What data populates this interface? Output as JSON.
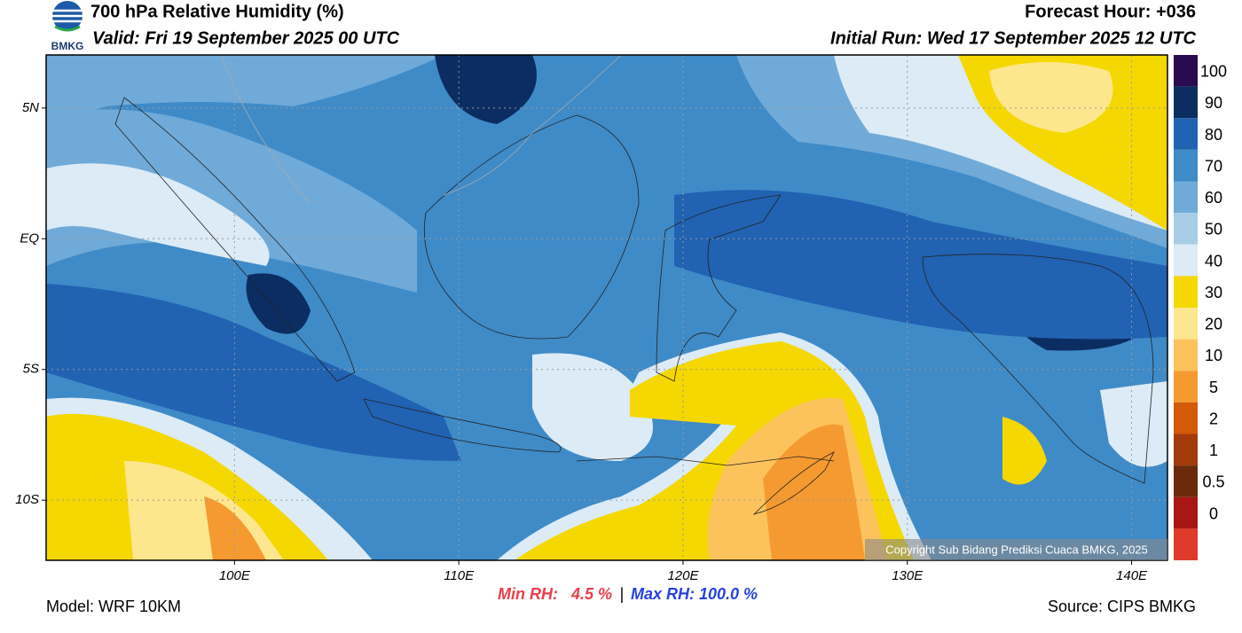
{
  "header": {
    "logo_text": "BMKG",
    "title": "700 hPa Relative Humidity (%)",
    "valid": "Valid: Fri 19 September 2025 00 UTC",
    "forecast_hour": "Forecast Hour: +036",
    "initial_run": "Initial Run: Wed 17 September 2025 12 UTC"
  },
  "map": {
    "lon_range": [
      91.6,
      141.6
    ],
    "lat_range": [
      7.03,
      -12.3
    ],
    "lon_ticks": [
      {
        "value": 100,
        "label": "100E"
      },
      {
        "value": 110,
        "label": "110E"
      },
      {
        "value": 120,
        "label": "120E"
      },
      {
        "value": 130,
        "label": "130E"
      },
      {
        "value": 140,
        "label": "140E"
      }
    ],
    "lat_ticks": [
      {
        "value": 5,
        "label": "5N"
      },
      {
        "value": 0,
        "label": "EQ"
      },
      {
        "value": -5,
        "label": "5S"
      },
      {
        "value": -10,
        "label": "10S"
      }
    ],
    "copyright": "Copyright Sub Bidang Prediksi Cuaca BMKG, 2025"
  },
  "colorbar": {
    "levels": [
      100,
      90,
      80,
      70,
      60,
      50,
      40,
      30,
      20,
      10,
      5,
      2,
      1,
      0.5,
      0
    ],
    "colors": [
      "#2b0b50",
      "#0b2d62",
      "#2162b2",
      "#3f8bc8",
      "#70aad8",
      "#a8cde6",
      "#dcebf5",
      "#f5d800",
      "#fde78e",
      "#fcc35c",
      "#f59a30",
      "#d3590b",
      "#a23a0c",
      "#6b2a0c",
      "#a81616",
      "#de3b2c"
    ]
  },
  "footer": {
    "model": "Model: WRF 10KM",
    "min_rh": "Min RH:   4.5 %",
    "separator": "|",
    "max_rh": "Max RH: 100.0 %",
    "source": "Source: CIPS BMKG"
  }
}
